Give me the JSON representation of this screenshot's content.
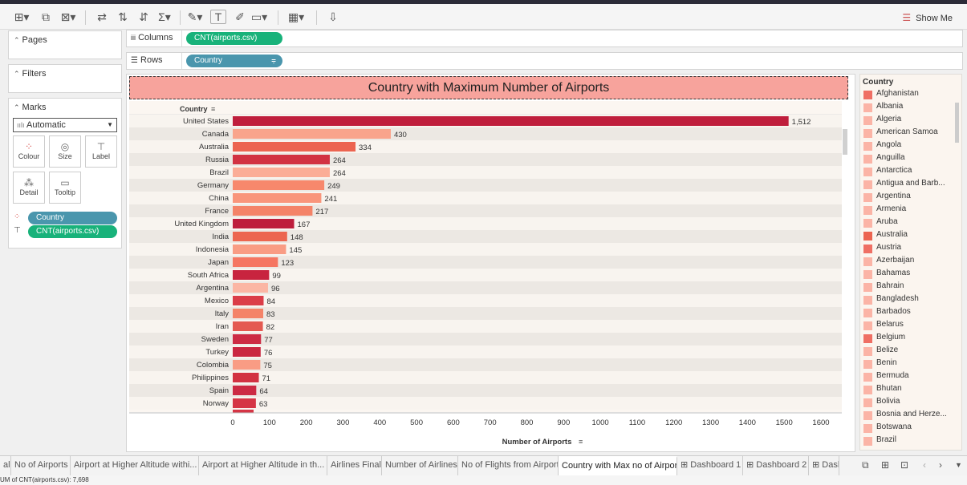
{
  "toolbar": {
    "show_me": "Show Me"
  },
  "panes": {
    "pages": "Pages",
    "filters": "Filters",
    "marks": "Marks",
    "mark_type": "Automatic",
    "mark_buttons": [
      "Colour",
      "Size",
      "Label",
      "Detail",
      "Tooltip"
    ],
    "mark_pills": [
      "Country",
      "CNT(airports.csv)"
    ]
  },
  "shelves": {
    "columns_label": "Columns",
    "columns_pill": "CNT(airports.csv)",
    "rows_label": "Rows",
    "rows_pill": "Country"
  },
  "viz": {
    "title": "Country with Maximum Number of Airports",
    "row_header": "Country",
    "x_axis_label": "Number of Airports"
  },
  "chart_data": {
    "type": "bar",
    "orientation": "horizontal",
    "title": "Country with Maximum Number of Airports",
    "xlabel": "Number of Airports",
    "ylabel": "Country",
    "xlim": [
      0,
      1600
    ],
    "xticks": [
      0,
      100,
      200,
      300,
      400,
      500,
      600,
      700,
      800,
      900,
      1000,
      1100,
      1200,
      1300,
      1400,
      1500,
      1600
    ],
    "categories": [
      "United States",
      "Canada",
      "Australia",
      "Russia",
      "Brazil",
      "Germany",
      "China",
      "France",
      "United Kingdom",
      "India",
      "Indonesia",
      "Japan",
      "South Africa",
      "Argentina",
      "Mexico",
      "Italy",
      "Iran",
      "Sweden",
      "Turkey",
      "Colombia",
      "Philippines",
      "Spain",
      "Norway"
    ],
    "values": [
      1512,
      430,
      334,
      264,
      264,
      249,
      241,
      217,
      167,
      148,
      145,
      123,
      99,
      96,
      84,
      83,
      82,
      77,
      76,
      75,
      71,
      64,
      63
    ],
    "value_labels": [
      "1,512",
      "430",
      "334",
      "264",
      "264",
      "249",
      "241",
      "217",
      "167",
      "148",
      "145",
      "123",
      "99",
      "96",
      "84",
      "83",
      "82",
      "77",
      "76",
      "75",
      "71",
      "64",
      "63"
    ],
    "colors": [
      "#bf1e3c",
      "#f9a48c",
      "#ec6450",
      "#d23242",
      "#fbad97",
      "#f7886c",
      "#f9957b",
      "#f48368",
      "#be1e3c",
      "#ec6650",
      "#f99c84",
      "#f57662",
      "#c8243f",
      "#fbb6a4",
      "#db3d48",
      "#f48368",
      "#e45a51",
      "#cd2b44",
      "#ca2741",
      "#f99c84",
      "#d23242",
      "#cc2a43",
      "#d53545"
    ],
    "grid": false,
    "banded_rows": true
  },
  "legend": {
    "title": "Country",
    "items": [
      {
        "label": "Afghanistan",
        "color": "#ef6f64"
      },
      {
        "label": "Albania",
        "color": "#fbb4a6"
      },
      {
        "label": "Algeria",
        "color": "#fbb4a6"
      },
      {
        "label": "American Samoa",
        "color": "#fbb4a6"
      },
      {
        "label": "Angola",
        "color": "#fbb4a6"
      },
      {
        "label": "Anguilla",
        "color": "#fbb4a6"
      },
      {
        "label": "Antarctica",
        "color": "#fbb4a6"
      },
      {
        "label": "Antigua and Barb...",
        "color": "#fbb4a6"
      },
      {
        "label": "Argentina",
        "color": "#fbb4a6"
      },
      {
        "label": "Armenia",
        "color": "#fbb4a6"
      },
      {
        "label": "Aruba",
        "color": "#fbb4a6"
      },
      {
        "label": "Australia",
        "color": "#ec6450"
      },
      {
        "label": "Austria",
        "color": "#ef6f64"
      },
      {
        "label": "Azerbaijan",
        "color": "#fbb4a6"
      },
      {
        "label": "Bahamas",
        "color": "#fbb4a6"
      },
      {
        "label": "Bahrain",
        "color": "#fbb4a6"
      },
      {
        "label": "Bangladesh",
        "color": "#fbb4a6"
      },
      {
        "label": "Barbados",
        "color": "#fbb4a6"
      },
      {
        "label": "Belarus",
        "color": "#fbb4a6"
      },
      {
        "label": "Belgium",
        "color": "#ef6f64"
      },
      {
        "label": "Belize",
        "color": "#fbb4a6"
      },
      {
        "label": "Benin",
        "color": "#fbb4a6"
      },
      {
        "label": "Bermuda",
        "color": "#fbb4a6"
      },
      {
        "label": "Bhutan",
        "color": "#fbb4a6"
      },
      {
        "label": "Bolivia",
        "color": "#fbb4a6"
      },
      {
        "label": "Bosnia and Herze...",
        "color": "#fbb4a6"
      },
      {
        "label": "Botswana",
        "color": "#fbb4a6"
      },
      {
        "label": "Brazil",
        "color": "#fbb4a6"
      }
    ]
  },
  "tabs": [
    {
      "label": "al",
      "active": false
    },
    {
      "label": "No of Airports",
      "active": false
    },
    {
      "label": "Airport at Higher Altitude withi...",
      "active": false
    },
    {
      "label": "Airport at Higher Altitude in th...",
      "active": false
    },
    {
      "label": "Airlines Final",
      "active": false
    },
    {
      "label": "Number of Airlines",
      "active": false
    },
    {
      "label": "No of Flights from Airport",
      "active": false
    },
    {
      "label": "Country with Max no of Airport",
      "active": true
    },
    {
      "label": "Dashboard 1",
      "active": false
    },
    {
      "label": "Dashboard 2",
      "active": false
    },
    {
      "label": "Dashl",
      "active": false
    }
  ],
  "status": "UM of CNT(airports.csv): 7,698"
}
